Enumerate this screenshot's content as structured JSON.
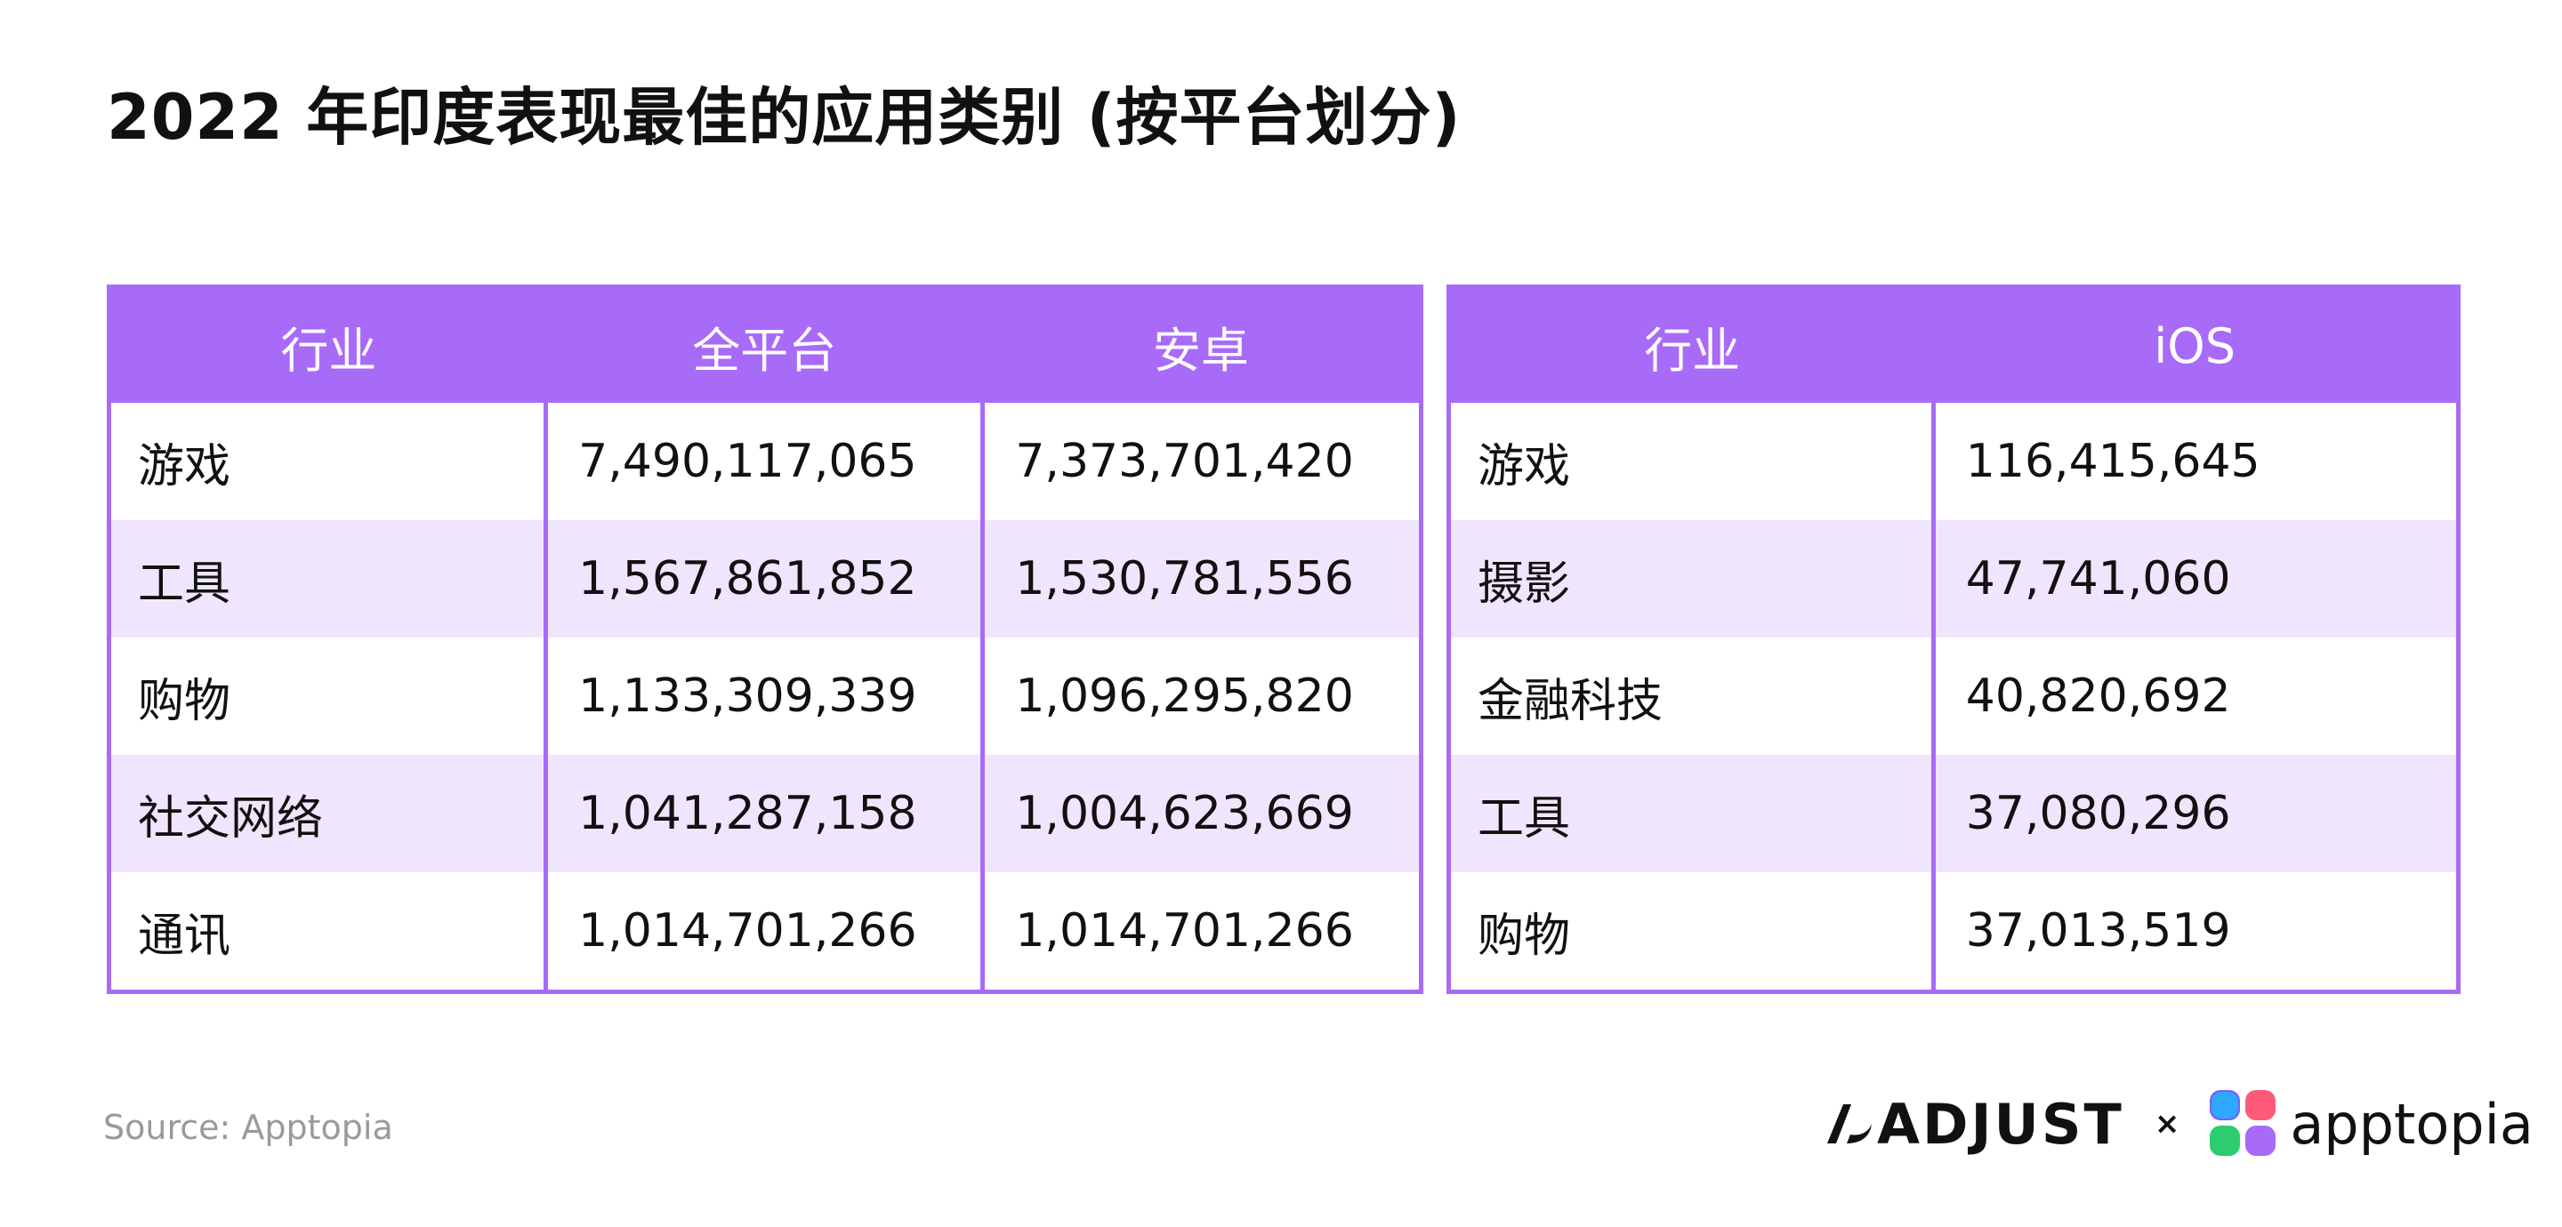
{
  "title": "2022 年印度表现最佳的应用类别 (按平台划分)",
  "left_table": {
    "headers": [
      "行业",
      "全平台",
      "安卓"
    ],
    "rows": [
      [
        "游戏",
        "7,490,117,065",
        "7,373,701,420"
      ],
      [
        "工具",
        "1,567,861,852",
        "1,530,781,556"
      ],
      [
        "购物",
        "1,133,309,339",
        "1,096,295,820"
      ],
      [
        "社交网络",
        "1,041,287,158",
        "1,004,623,669"
      ],
      [
        "通讯",
        "1,014,701,266",
        "1,014,701,266"
      ]
    ]
  },
  "right_table": {
    "headers": [
      "行业",
      "iOS"
    ],
    "rows": [
      [
        "游戏",
        "116,415,645"
      ],
      [
        "摄影",
        "47,741,060"
      ],
      [
        "金融科技",
        "40,820,692"
      ],
      [
        "工具",
        "37,080,296"
      ],
      [
        "购物",
        "37,013,519"
      ]
    ]
  },
  "footer": {
    "source": "Source: Apptopia",
    "logo_adjust": "ADJUST",
    "logo_separator": "×",
    "logo_apptopia": "apptopia"
  },
  "colors": {
    "accent": "#a86bf8",
    "row_alt": "#efe6fd",
    "text": "#111111",
    "source_text": "#9a9a9a"
  },
  "icons": [
    "adjust-logo-mark-icon",
    "apptopia-logo-icon"
  ]
}
